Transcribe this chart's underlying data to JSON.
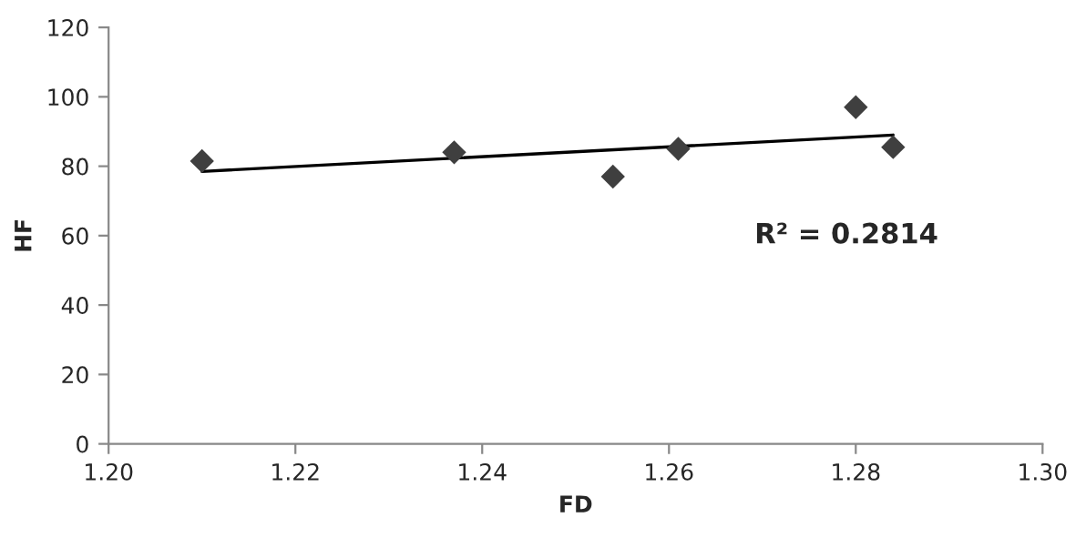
{
  "chart_data": {
    "type": "scatter",
    "xlabel": "FD",
    "ylabel": "HF",
    "series": [
      {
        "color": "#3f3f3f",
        "marker": "diamond",
        "x": [
          1.21,
          1.237,
          1.254,
          1.261,
          1.28,
          1.284
        ],
        "values": [
          81.5,
          84,
          77,
          85,
          97,
          85.5
        ]
      },
      {
        "type": "line",
        "color": "#000000",
        "marker": "none",
        "x": [
          1.21,
          1.284
        ],
        "values": [
          78.5,
          89
        ]
      }
    ],
    "annotations": [
      "R² = 0.2814"
    ],
    "xlim": [
      1.2,
      1.3
    ],
    "xticks": [
      {
        "value": 1.2,
        "label": "1.20"
      },
      {
        "value": 1.22,
        "label": "1.22"
      },
      {
        "value": 1.24,
        "label": "1.24"
      },
      {
        "value": 1.26,
        "label": "1.26"
      },
      {
        "value": 1.28,
        "label": "1.28"
      },
      {
        "value": 1.3,
        "label": "1.30"
      }
    ],
    "ylim": [
      0,
      120
    ],
    "yticks": [
      0,
      20,
      40,
      60,
      80,
      100,
      120
    ],
    "grid": false,
    "legend": false
  }
}
